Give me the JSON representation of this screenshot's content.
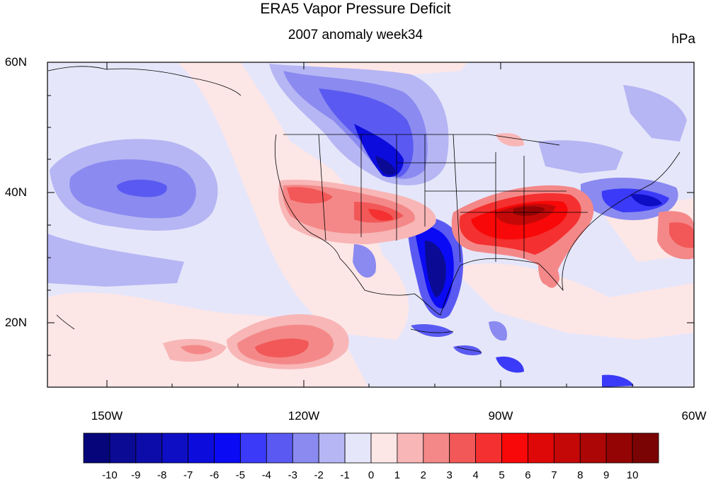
{
  "title": "ERA5 Vapor Pressure Deficit",
  "subtitle": "2007 anomaly week34",
  "units": "hPa",
  "map": {
    "lat_range": [
      10,
      60
    ],
    "lon_range": [
      -160,
      -60
    ],
    "lat_labels": [
      "60N",
      "40N",
      "20N"
    ],
    "lon_labels": [
      "150W",
      "120W",
      "90W",
      "60W"
    ]
  },
  "colorbar": {
    "labels": [
      "-10",
      "-9",
      "-8",
      "-7",
      "-6",
      "-5",
      "-4",
      "-3",
      "-2",
      "-1",
      "0",
      "1",
      "2",
      "3",
      "4",
      "5",
      "6",
      "7",
      "8",
      "9",
      "10"
    ],
    "colors": [
      "#06067a",
      "#0a0a94",
      "#0c0caa",
      "#0e0ec4",
      "#0c0cdc",
      "#0a0af4",
      "#3a3af8",
      "#5a5af2",
      "#8a8af0",
      "#b6b6f4",
      "#e6e6fa",
      "#fde6e6",
      "#f8b6b6",
      "#f48888",
      "#f25858",
      "#f43030",
      "#f80808",
      "#de0808",
      "#c40808",
      "#ac0606",
      "#940404",
      "#7a0404"
    ]
  },
  "colors": {
    "neutral_land_ocean": "#e8e8f8",
    "positive_anomaly": "#f43030",
    "negative_anomaly": "#2a2af0"
  }
}
